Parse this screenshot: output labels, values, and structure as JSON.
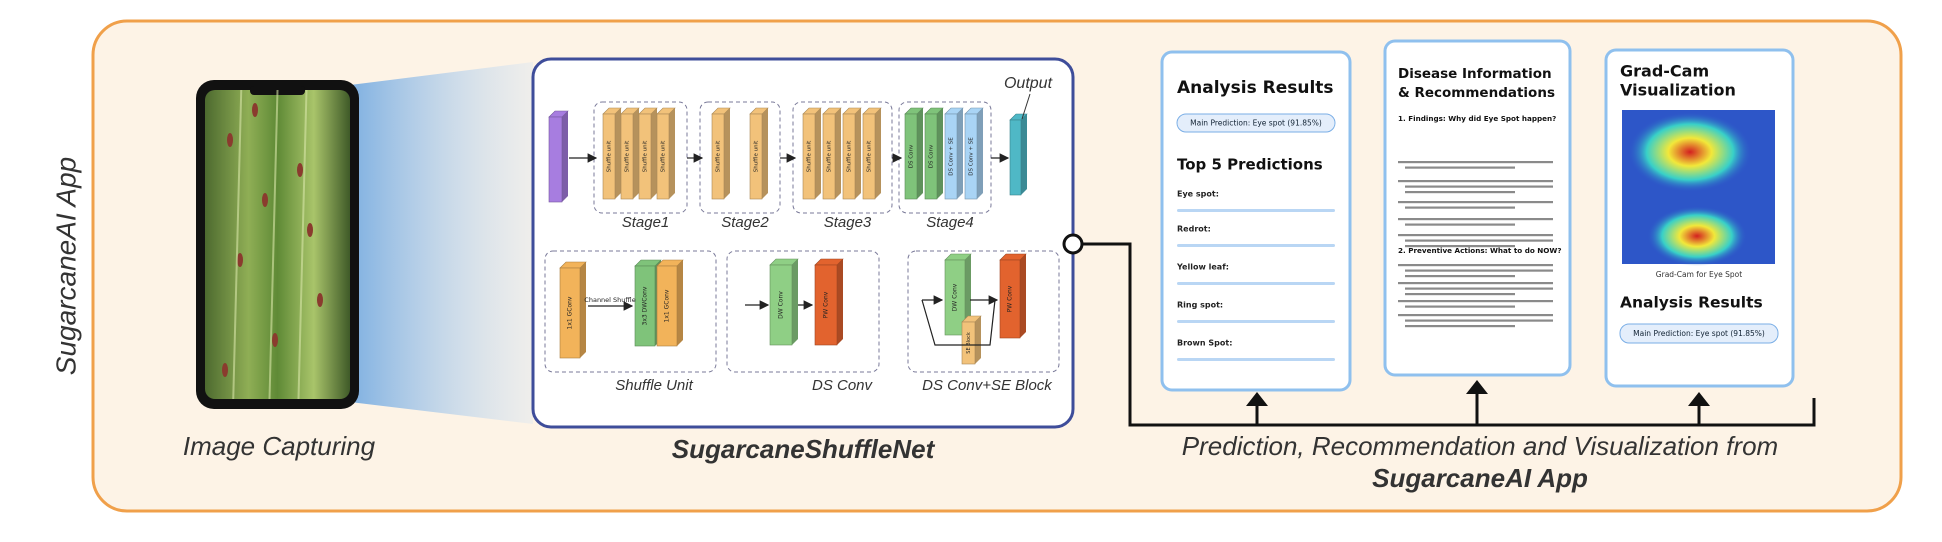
{
  "app_label": "SugarcaneAI App",
  "capture": {
    "label": "Image Capturing"
  },
  "network": {
    "title": "SugarcaneShuffleNet",
    "output": "Output",
    "stages": [
      {
        "label": "Stage1",
        "blocks": [
          "Shuffle unit",
          "Shuffle unit",
          "Shuffle unit",
          "Shuffle unit"
        ]
      },
      {
        "label": "Stage2",
        "blocks": [
          "Shuffle unit",
          "Shuffle unit"
        ]
      },
      {
        "label": "Stage3",
        "blocks": [
          "Shuffle unit",
          "Shuffle unit",
          "Shuffle unit",
          "Shuffle unit"
        ]
      },
      {
        "label": "Stage4",
        "blocks": [
          "DS Conv",
          "DS Conv",
          "DS Conv + SE",
          "DS Conv + SE"
        ]
      }
    ],
    "modules": [
      {
        "label": "Shuffle Unit",
        "blocks": [
          "1x1 GConv",
          "3x3 DWConv",
          "1x1 GConv"
        ],
        "note": "Channel Shuffle"
      },
      {
        "label": "DS Conv",
        "blocks": [
          "DW Conv",
          "PW Conv"
        ]
      },
      {
        "label": "DS Conv+SE Block",
        "blocks": [
          "DW Conv",
          "SE Block",
          "PW Conv"
        ]
      }
    ]
  },
  "screens": {
    "analysis": {
      "title": "Analysis Results",
      "main": "Main Prediction: Eye spot (91.85%)",
      "top_title": "Top 5 Predictions",
      "items": [
        "Eye spot:",
        "Redrot:",
        "Yellow leaf:",
        "Ring spot:",
        "Brown Spot:"
      ]
    },
    "info": {
      "title_1": "Disease Information",
      "title_2": "& Recommendations",
      "section_1": "1. Findings: Why did Eye Spot happen?",
      "section_2": "2. Preventive Actions: What to do NOW?"
    },
    "gradcam": {
      "title_1": "Grad-Cam",
      "title_2": "Visualization",
      "caption": "Grad-Cam for Eye Spot",
      "result_title": "Analysis Results",
      "main": "Main Prediction: Eye spot (91.85%)"
    }
  },
  "footer": {
    "line_1": "Prediction, Recommendation and Visualization from",
    "line_2": "SugarcaneAI App"
  }
}
